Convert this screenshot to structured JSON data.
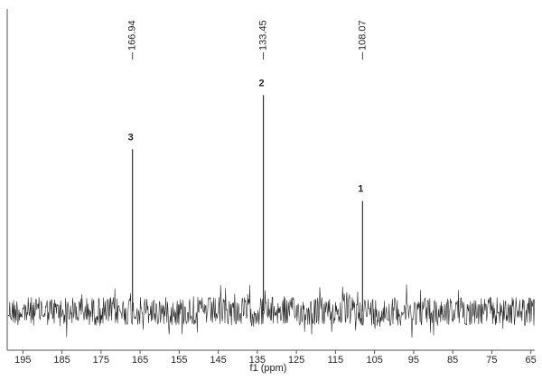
{
  "chart_data": {
    "type": "spectrum",
    "x_label": "f1 (ppm)",
    "xlim": [
      199,
      64
    ],
    "xticks": [
      195,
      185,
      175,
      165,
      155,
      145,
      135,
      125,
      115,
      105,
      95,
      85,
      75,
      65
    ],
    "ylim": [
      -18,
      144
    ],
    "peaks": {
      "x": [
        166.94,
        133.45,
        108.07
      ],
      "numbers": [
        "3",
        "2",
        "1"
      ],
      "values": [
        75,
        100,
        51
      ]
    },
    "color": "#333333"
  }
}
